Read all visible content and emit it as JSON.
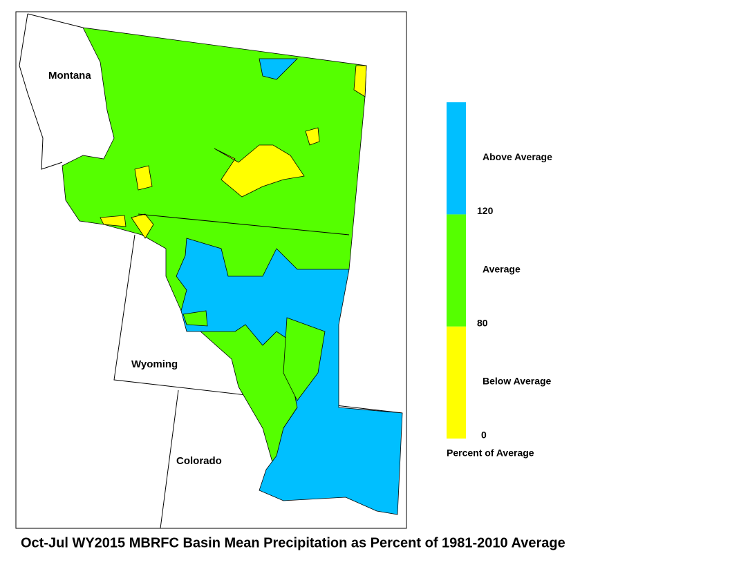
{
  "map": {
    "states": [
      "Montana",
      "Wyoming",
      "Colorado"
    ]
  },
  "legend": {
    "bands": [
      {
        "label": "Below Average",
        "color": "#ffff00"
      },
      {
        "label": "Average",
        "color": "#55ff00"
      },
      {
        "label": "Above Average",
        "color": "#00bfff"
      }
    ],
    "ticks": [
      0,
      80,
      120
    ],
    "title": "Percent of Average"
  },
  "title": "Oct-Jul WY2015 MBRFC Basin Mean Precipitation as Percent of 1981-2010 Average"
}
